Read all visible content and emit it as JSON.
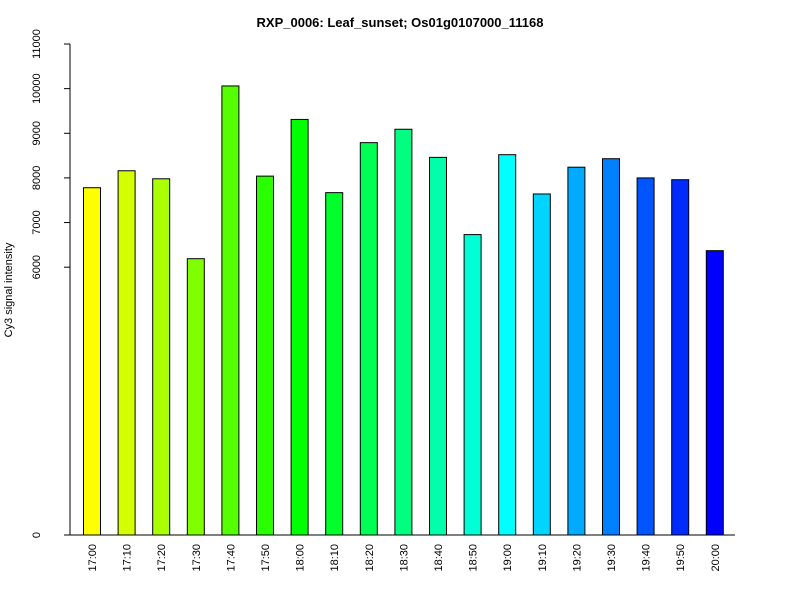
{
  "chart_data": {
    "type": "bar",
    "title": "RXP_0006: Leaf_sunset; Os01g0107000_11168",
    "xlabel": "",
    "ylabel": "Cy3 signal intensity",
    "categories": [
      "17:00",
      "17:10",
      "17:20",
      "17:30",
      "17:40",
      "17:50",
      "18:00",
      "18:10",
      "18:20",
      "18:30",
      "18:40",
      "18:50",
      "19:00",
      "19:10",
      "19:20",
      "19:30",
      "19:40",
      "19:50",
      "20:00"
    ],
    "values": [
      7780,
      8160,
      7980,
      6190,
      10060,
      8040,
      9310,
      7670,
      8790,
      9090,
      8460,
      6730,
      8520,
      7640,
      8240,
      8430,
      8000,
      7960,
      6370
    ],
    "colors": [
      "#FFFF00",
      "#D4FF00",
      "#AAFF00",
      "#80FF00",
      "#55FF00",
      "#2AFF00",
      "#00FF00",
      "#00FF2B",
      "#00FF55",
      "#00FF80",
      "#00FFAA",
      "#00FFD5",
      "#00FFFF",
      "#00D4FF",
      "#00AAFF",
      "#0080FF",
      "#0055FF",
      "#002BFF",
      "#0000FF"
    ],
    "yticks": [
      0,
      6000,
      7000,
      8000,
      9000,
      10000,
      11000
    ],
    "ylim": [
      0,
      11000
    ],
    "grid": false,
    "legend": "none"
  }
}
